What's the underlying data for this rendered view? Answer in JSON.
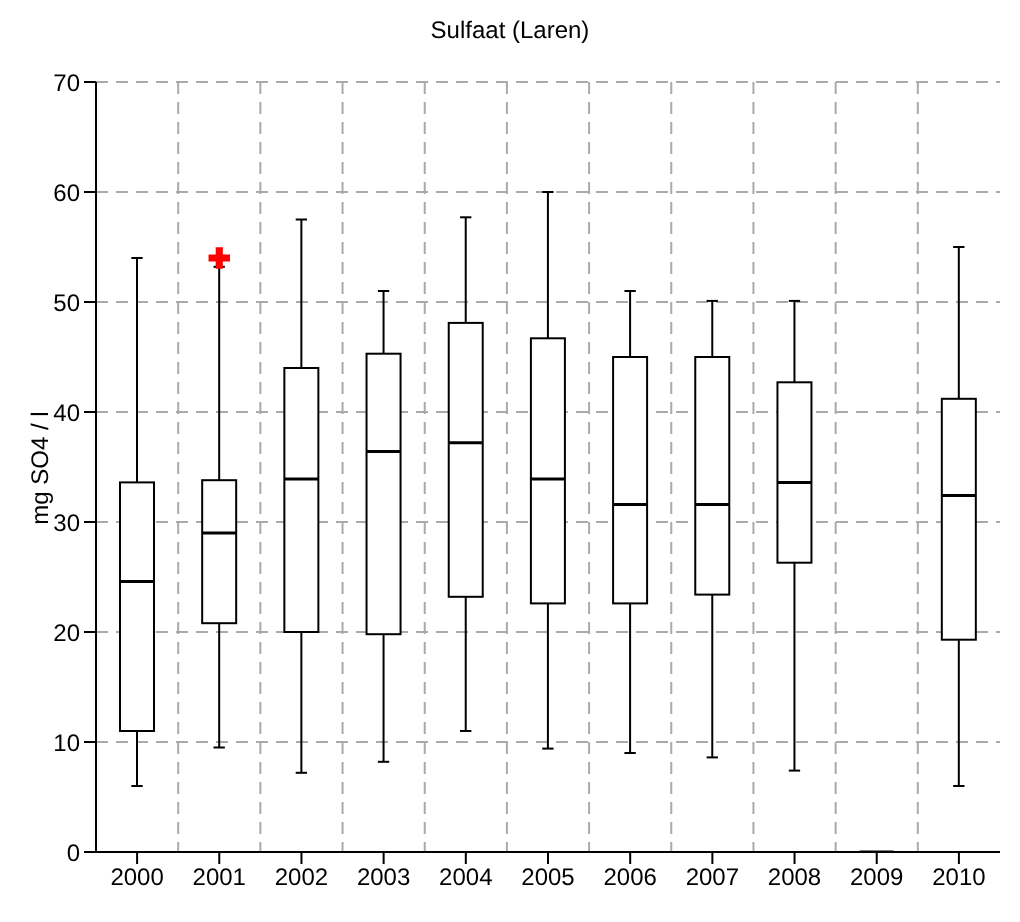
{
  "chart_data": {
    "type": "box",
    "title": "Sulfaat (Laren)",
    "ylabel": "mg SO4 / l",
    "categories": [
      "2000",
      "2001",
      "2002",
      "2003",
      "2004",
      "2005",
      "2006",
      "2007",
      "2008",
      "2009",
      "2010"
    ],
    "boxes": [
      {
        "low": 6,
        "q1": 11,
        "median": 24.6,
        "q3": 33.6,
        "high": 54
      },
      {
        "low": 9.5,
        "q1": 20.8,
        "median": 29,
        "q3": 33.8,
        "high": 53.2,
        "outliers": [
          54
        ]
      },
      {
        "low": 7.2,
        "q1": 20,
        "median": 33.9,
        "q3": 44,
        "high": 57.5
      },
      {
        "low": 8.2,
        "q1": 19.8,
        "median": 36.4,
        "q3": 45.3,
        "high": 51
      },
      {
        "low": 11,
        "q1": 23.2,
        "median": 37.2,
        "q3": 48.1,
        "high": 57.7
      },
      {
        "low": 9.4,
        "q1": 22.6,
        "median": 33.9,
        "q3": 46.7,
        "high": 60
      },
      {
        "low": 9,
        "q1": 22.6,
        "median": 31.6,
        "q3": 45,
        "high": 51
      },
      {
        "low": 8.6,
        "q1": 23.4,
        "median": 31.6,
        "q3": 45,
        "high": 50.1
      },
      {
        "low": 7.4,
        "q1": 26.3,
        "median": 33.6,
        "q3": 42.7,
        "high": 50.1
      },
      {
        "low": 0,
        "q1": 0,
        "median": 0,
        "q3": 0,
        "high": 0
      },
      {
        "low": 6,
        "q1": 19.3,
        "median": 32.4,
        "q3": 41.2,
        "high": 55
      }
    ],
    "ylim": [
      0,
      70
    ],
    "yticks": [
      0,
      10,
      20,
      30,
      40,
      50,
      60,
      70
    ],
    "grid": true,
    "marker": "cross",
    "legend": false
  }
}
